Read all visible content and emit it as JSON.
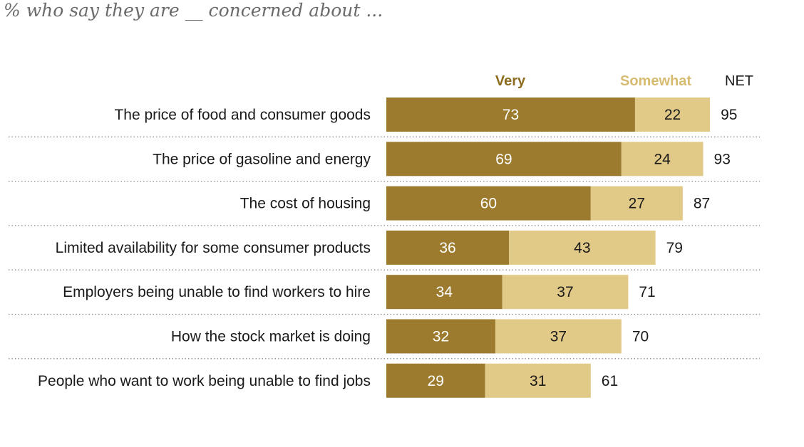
{
  "subtitle": "% who say they are __ concerned about ...",
  "colors": {
    "very": "#9c7b2e",
    "somewhat": "#e1c987",
    "very_text": "#8c6c1e",
    "somewhat_text": "#d7bb70",
    "divider": "#8a8a8a"
  },
  "chart_data": {
    "type": "bar",
    "orientation": "horizontal",
    "stacked": true,
    "legend": [
      "Very",
      "Somewhat"
    ],
    "net_label": "NET",
    "categories": [
      "The price of food and consumer goods",
      "The price of gasoline and energy",
      "The cost of housing",
      "Limited availability for some consumer products",
      "Employers being unable to find workers to hire",
      "How the stock market is doing",
      "People who want to work being unable to find jobs"
    ],
    "series": [
      {
        "name": "Very",
        "values": [
          73,
          69,
          60,
          36,
          34,
          32,
          29
        ]
      },
      {
        "name": "Somewhat",
        "values": [
          22,
          24,
          27,
          43,
          37,
          37,
          31
        ]
      }
    ],
    "net": [
      95,
      93,
      87,
      79,
      71,
      70,
      61
    ],
    "xlim": [
      0,
      100
    ]
  }
}
